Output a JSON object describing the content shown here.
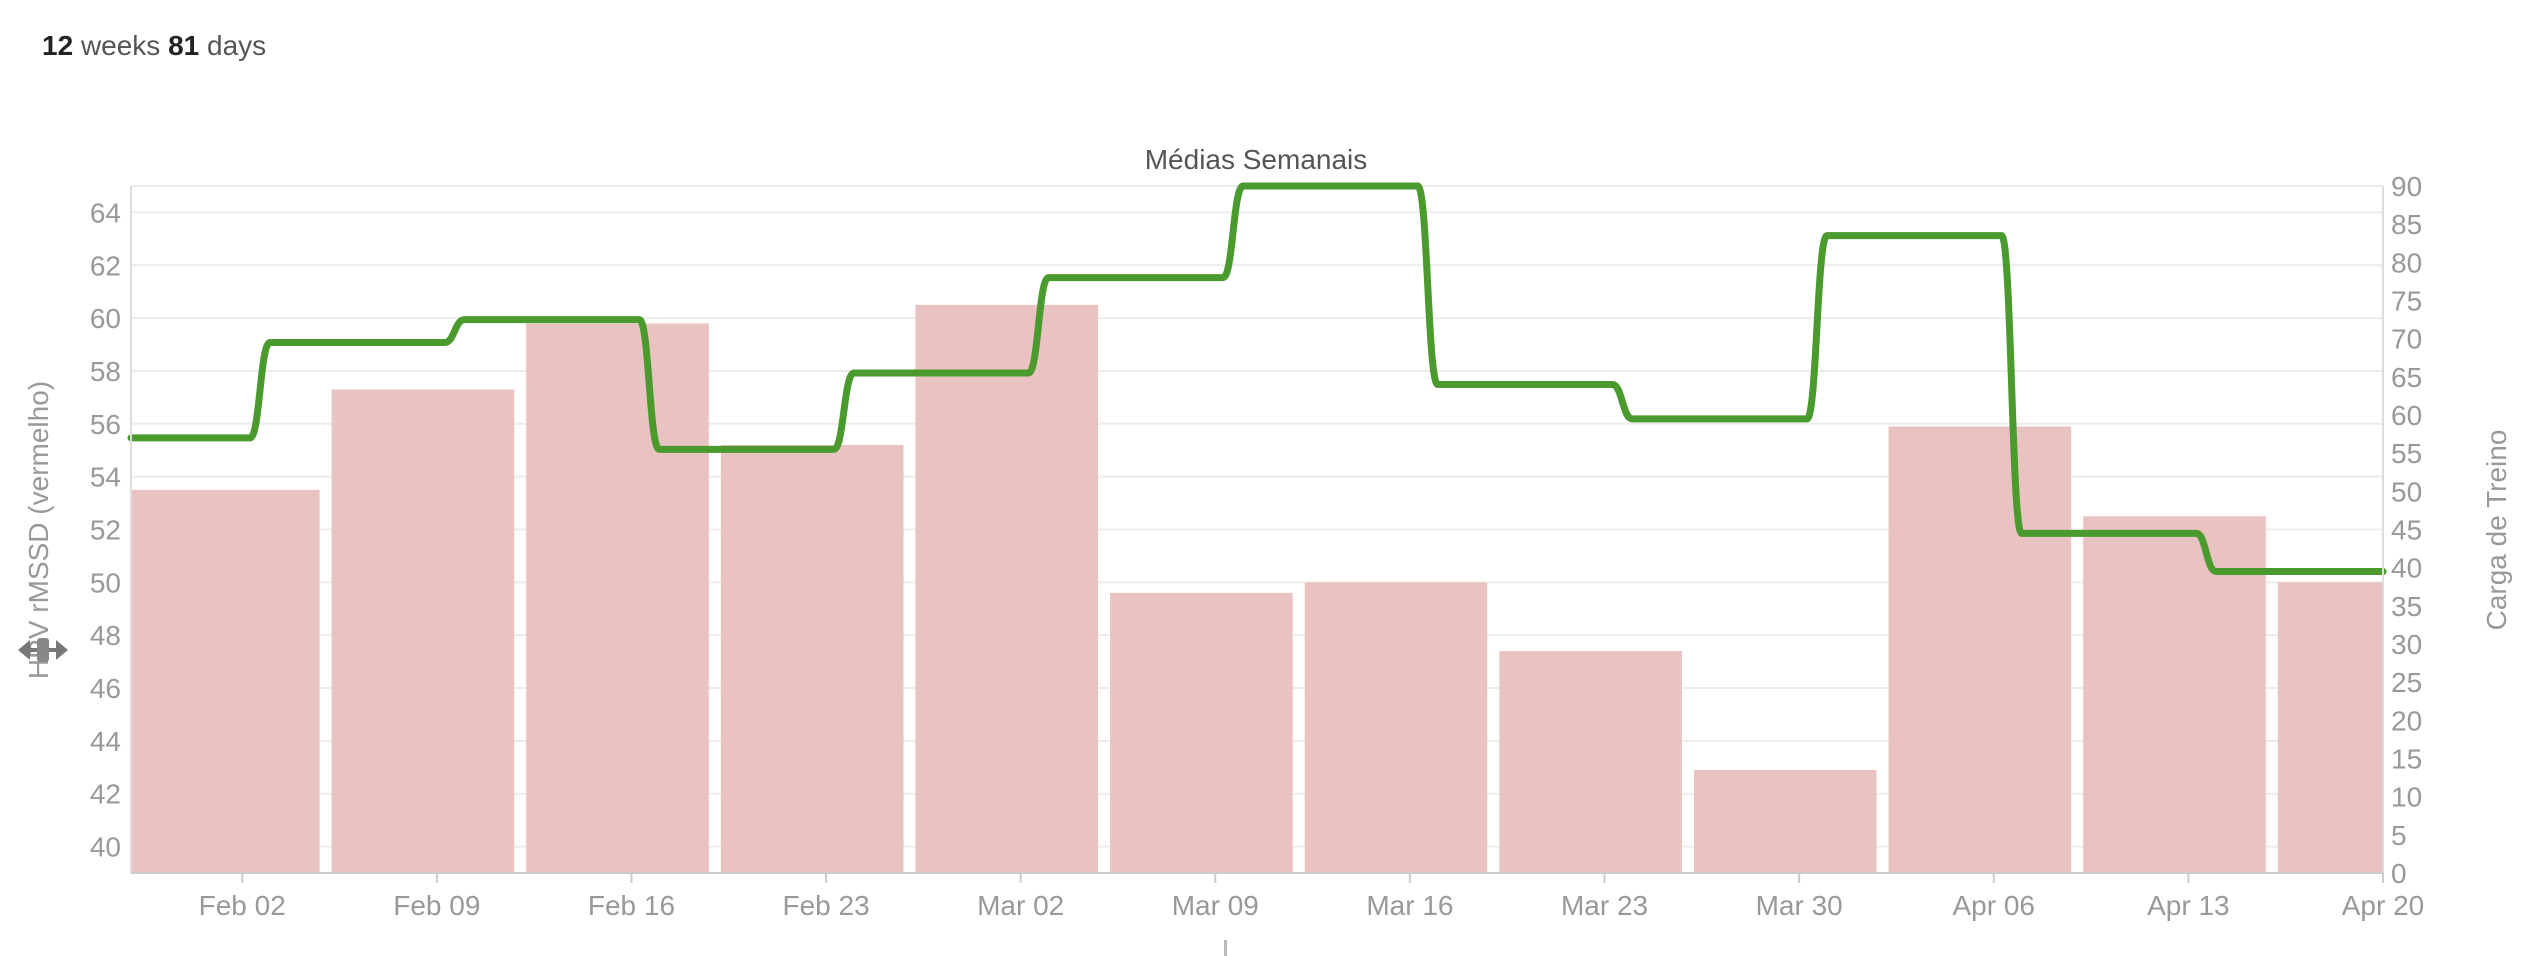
{
  "summary": {
    "weeks_value": "12",
    "weeks_label": "weeks",
    "days_value": "81",
    "days_label": "days"
  },
  "colors": {
    "bar": "#e9c2c2",
    "line": "#4a9a2d",
    "grid": "#ececec",
    "axis_text": "#999999",
    "title": "#555555"
  },
  "icons": {
    "resize": "resize-arrows-icon"
  },
  "chart_data": {
    "type": "bar",
    "title": "Médias Semanais",
    "ylabel_left": "HRV rMSSD (vermelho)",
    "ylabel_right": "Carga de Treino",
    "x_ticks": [
      "Feb 02",
      "Feb 09",
      "Feb 16",
      "Feb 23",
      "Mar 02",
      "Mar 09",
      "Mar 16",
      "Mar 23",
      "Mar 30",
      "Apr 06",
      "Apr 13",
      "Apr 20"
    ],
    "y_left_ticks": [
      40,
      42,
      44,
      46,
      48,
      50,
      52,
      54,
      56,
      58,
      60,
      62,
      64
    ],
    "y_right_ticks": [
      0,
      5,
      10,
      15,
      20,
      25,
      30,
      35,
      40,
      45,
      50,
      55,
      60,
      65,
      70,
      75,
      80,
      85,
      90
    ],
    "y_left_range": [
      39,
      65
    ],
    "y_right_range": [
      0,
      90
    ],
    "x_range": [
      "2015-01-29",
      "2015-04-20"
    ],
    "grid": true,
    "series": [
      {
        "name": "HRV rMSSD (vermelho)",
        "type": "bar",
        "axis": "left",
        "x": [
          "2015-01-29",
          "2015-02-05",
          "2015-02-12",
          "2015-02-19",
          "2015-02-26",
          "2015-03-05",
          "2015-03-12",
          "2015-03-19",
          "2015-03-26",
          "2015-04-02",
          "2015-04-09",
          "2015-04-16"
        ],
        "values": [
          53.5,
          57.3,
          59.8,
          55.2,
          60.5,
          49.6,
          50.0,
          47.4,
          42.9,
          55.9,
          52.5,
          50.0
        ]
      },
      {
        "name": "Carga de Treino",
        "type": "step-line",
        "axis": "right",
        "x": [
          "2015-01-29",
          "2015-02-03",
          "2015-02-10",
          "2015-02-17",
          "2015-02-24",
          "2015-03-03",
          "2015-03-10",
          "2015-03-17",
          "2015-03-24",
          "2015-03-31",
          "2015-04-07",
          "2015-04-14"
        ],
        "values": [
          57,
          69.5,
          72.5,
          55.5,
          65.5,
          78,
          90,
          64,
          59.5,
          83.5,
          44.5,
          39.5
        ]
      }
    ]
  }
}
